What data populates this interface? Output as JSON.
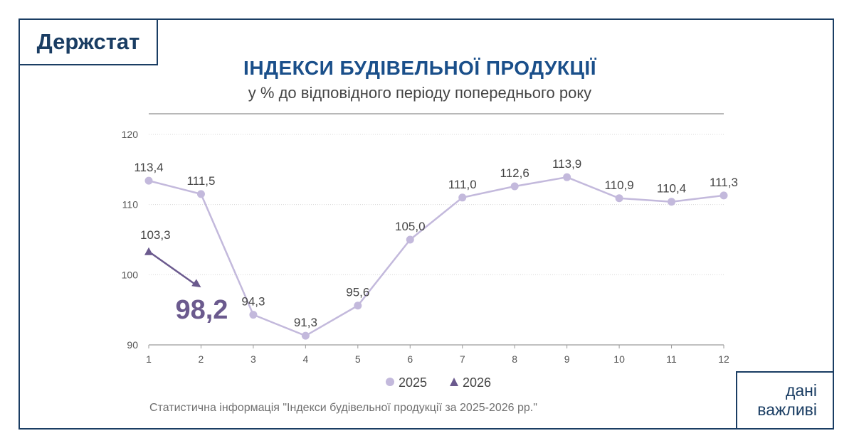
{
  "brand": {
    "logo_text": "Держстат",
    "tagline_line1": "дані",
    "tagline_line2": "важливі"
  },
  "colors": {
    "frame": "#1a3d63",
    "title": "#1a4f8a",
    "series_2025": "#c3b9dc",
    "series_2026": "#6b5a8e"
  },
  "source_note": "Статистична інформація \"Індекси будівельної продукції за 2025-2026 рр.\"",
  "chart_data": {
    "type": "line",
    "title": "ІНДЕКСИ БУДІВЕЛЬНОЇ ПРОДУКЦІЇ",
    "subtitle": "у % до відповідного періоду попереднього року",
    "x": [
      1,
      2,
      3,
      4,
      5,
      6,
      7,
      8,
      9,
      10,
      11,
      12
    ],
    "x_tick_labels": [
      "1",
      "2",
      "3",
      "4",
      "5",
      "6",
      "7",
      "8",
      "9",
      "10",
      "11",
      "12"
    ],
    "y_tick_labels": [
      "90",
      "100",
      "110",
      "120"
    ],
    "y_ticks": [
      90,
      100,
      110,
      120
    ],
    "ylim": [
      90,
      120
    ],
    "grid": true,
    "legend_position": "bottom-center",
    "series": [
      {
        "name": "2025",
        "marker": "circle",
        "x": [
          1,
          2,
          3,
          4,
          5,
          6,
          7,
          8,
          9,
          10,
          11,
          12
        ],
        "values": [
          113.4,
          111.5,
          94.3,
          91.3,
          95.6,
          105.0,
          111.0,
          112.6,
          113.9,
          110.9,
          110.4,
          111.3
        ],
        "labels": [
          "113,4",
          "111,5",
          "94,3",
          "91,3",
          "95,6",
          "105,0",
          "111,0",
          "112,6",
          "113,9",
          "110,9",
          "110,4",
          "111,3"
        ]
      },
      {
        "name": "2026",
        "marker": "triangle",
        "x": [
          1,
          2
        ],
        "values": [
          103.3,
          98.2
        ],
        "labels": [
          "103,3",
          "98,2"
        ]
      }
    ]
  }
}
